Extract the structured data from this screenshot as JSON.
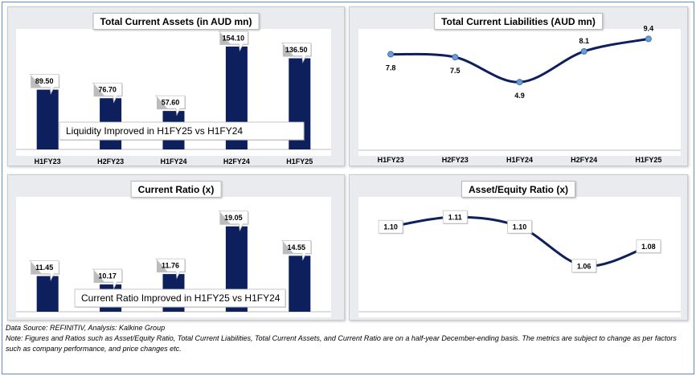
{
  "chart_data": [
    {
      "id": "current-assets",
      "type": "bar",
      "title": "Total Current Assets (in AUD mn)",
      "categories": [
        "H1FY23",
        "H2FY23",
        "H1FY24",
        "H2FY24",
        "H1FY25"
      ],
      "values": [
        89.5,
        76.7,
        57.6,
        154.1,
        136.5
      ],
      "value_labels": [
        "89.50",
        "76.70",
        "57.60",
        "154.10",
        "136.50"
      ],
      "ylim": [
        0,
        160
      ],
      "annotation": "Liquidity Improved in H1FY25 vs H1FY24",
      "color": "#0d1f5c"
    },
    {
      "id": "current-liabilities",
      "type": "line",
      "title": "Total Current Liabilities (AUD mn)",
      "categories": [
        "H1FY23",
        "H2FY23",
        "H1FY24",
        "H2FY24",
        "H1FY25"
      ],
      "values": [
        7.8,
        7.5,
        4.9,
        8.1,
        9.4
      ],
      "value_labels": [
        "7.8",
        "7.5",
        "4.9",
        "8.1",
        "9.4"
      ],
      "ylim": [
        4,
        9.6
      ],
      "color": "#0d1f5c"
    },
    {
      "id": "current-ratio",
      "type": "bar",
      "title": "Current Ratio (x)",
      "categories": [
        "H1FY23",
        "H2FY23",
        "H1FY24",
        "H2FY24",
        "H1FY25"
      ],
      "values": [
        11.45,
        10.17,
        11.76,
        19.05,
        14.55
      ],
      "value_labels": [
        "11.45",
        "10.17",
        "11.76",
        "19.05",
        "14.55"
      ],
      "ylim": [
        6,
        20
      ],
      "annotation": "Current Ratio Improved in H1FY25 vs H1FY24",
      "color": "#0d1f5c"
    },
    {
      "id": "asset-equity-ratio",
      "type": "line",
      "title": "Asset/Equity Ratio (x)",
      "categories": [
        "H1FY23",
        "H2FY23",
        "H1FY24",
        "H2FY24",
        "H1FY25"
      ],
      "values": [
        1.1,
        1.11,
        1.1,
        1.06,
        1.08
      ],
      "value_labels": [
        "1.10",
        "1.11",
        "1.10",
        "1.06",
        "1.08"
      ],
      "ylim": [
        1.05,
        1.115
      ],
      "color": "#0d1f5c"
    }
  ],
  "footer": {
    "source": "Data Source: REFINITIV, Analysis: Kalkine Group",
    "note": "Note: Figures and Ratios such as Asset/Equity Ratio, Total Current Liabilities, Total Current Assets, and Current Ratio  are on a half-year December-ending basis. The metrics are subject to change as per factors such as company performance, and price changes etc."
  }
}
